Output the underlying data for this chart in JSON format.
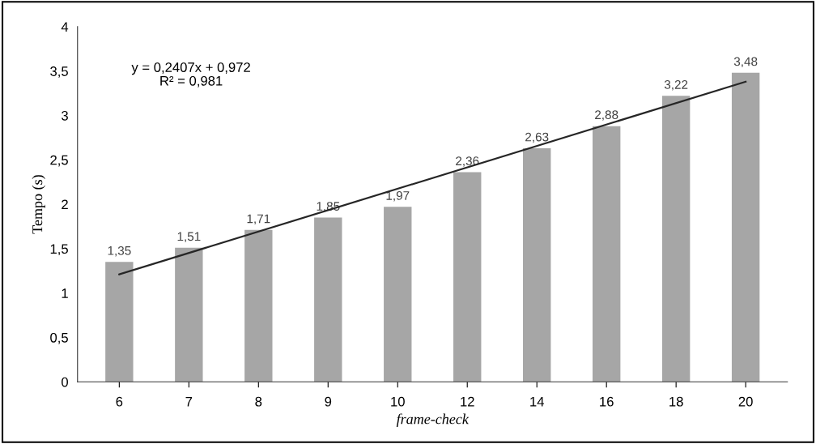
{
  "chart_data": {
    "type": "bar",
    "xlabel": "frame-check",
    "ylabel": "Tempo (s)",
    "categories": [
      "6",
      "7",
      "8",
      "9",
      "10",
      "12",
      "14",
      "16",
      "18",
      "20"
    ],
    "series": [
      {
        "color": "#a6a6a6",
        "values": [
          1.35,
          1.51,
          1.71,
          1.85,
          1.97,
          2.36,
          2.63,
          2.88,
          3.22,
          3.48
        ],
        "value_labels": [
          "1,35",
          "1,51",
          "1,71",
          "1,85",
          "1,97",
          "2,36",
          "2,63",
          "2,88",
          "3,22",
          "3,48"
        ]
      },
      {
        "type": "line",
        "color": "#262626",
        "x": [
          "6",
          "20"
        ],
        "values": [
          1.21,
          3.38
        ]
      }
    ],
    "ylim": [
      0,
      4
    ],
    "yticks": [
      0,
      {
        "value": 0.5,
        "label": "0,5"
      },
      1,
      {
        "value": 1.5,
        "label": "1,5"
      },
      2,
      {
        "value": 2.5,
        "label": "2,5"
      },
      3,
      {
        "value": 3.5,
        "label": "3,5"
      },
      4
    ],
    "annotations": [
      "y = 0,2407x + 0,972\nR² = 0,981"
    ],
    "grid": false,
    "legend": false
  }
}
